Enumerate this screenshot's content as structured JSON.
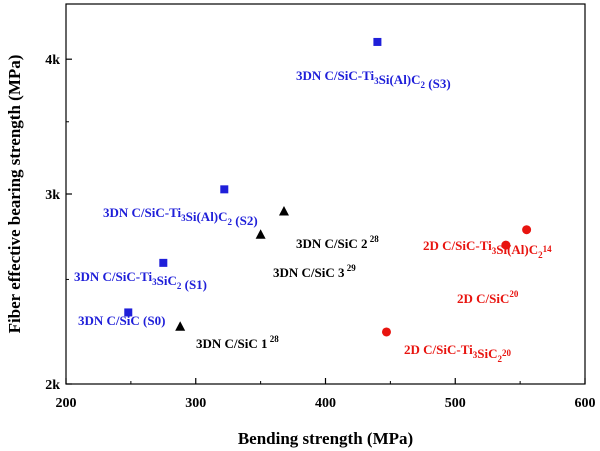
{
  "chart_data": {
    "type": "scatter",
    "xlabel": "Bending strength (MPa)",
    "ylabel": "Fiber effective bearing strength (MPa)",
    "xlim": [
      200,
      600
    ],
    "ylim": [
      2000,
      4500
    ],
    "y_scale": "log",
    "x_ticks": [
      200,
      300,
      400,
      500,
      600
    ],
    "y_ticks": [
      {
        "value": 2000,
        "label": "2k"
      },
      {
        "value": 3000,
        "label": "3k"
      },
      {
        "value": 4000,
        "label": "4k"
      }
    ],
    "grid": false,
    "points": [
      {
        "label": "3DN C/SiC (S0)",
        "label_parts": [
          [
            "3DN C/SiC (S0)",
            ""
          ]
        ],
        "x": 248,
        "y": 2330,
        "marker": "square",
        "color": "#1f1fd9"
      },
      {
        "label": "3DN C/SiC-Ti3SiC2 (S1)",
        "label_parts": [
          [
            "3DN C/SiC-Ti",
            ""
          ],
          [
            "3",
            "sub"
          ],
          [
            "SiC",
            ""
          ],
          [
            "2",
            "sub"
          ],
          [
            " (S1)",
            ""
          ]
        ],
        "x": 275,
        "y": 2590,
        "marker": "square",
        "color": "#1f1fd9"
      },
      {
        "label": "3DN C/SiC-Ti3Si(Al)C2 (S2)",
        "label_parts": [
          [
            "3DN C/SiC-Ti",
            ""
          ],
          [
            "3",
            "sub"
          ],
          [
            "Si(Al)C",
            ""
          ],
          [
            "2",
            "sub"
          ],
          [
            " (S2)",
            ""
          ]
        ],
        "x": 322,
        "y": 3030,
        "marker": "square",
        "color": "#1f1fd9"
      },
      {
        "label": "3DN C/SiC-Ti3Si(Al)C2 (S3)",
        "label_parts": [
          [
            "3DN C/SiC-Ti",
            ""
          ],
          [
            "3",
            "sub"
          ],
          [
            "Si(Al)C",
            ""
          ],
          [
            "2",
            "sub"
          ],
          [
            " (S3)",
            ""
          ]
        ],
        "x": 440,
        "y": 4150,
        "marker": "square",
        "color": "#1f1fd9"
      },
      {
        "label": "3DN C/SiC 1 28",
        "label_parts": [
          [
            "3DN C/SiC 1",
            ""
          ],
          [
            " 28",
            "sup"
          ]
        ],
        "x": 288,
        "y": 2260,
        "marker": "triangle",
        "color": "#000000"
      },
      {
        "label": "3DN C/SiC 3 29",
        "label_parts": [
          [
            "3DN C/SiC 3",
            ""
          ],
          [
            " 29",
            "sup"
          ]
        ],
        "x": 350,
        "y": 2750,
        "marker": "triangle",
        "color": "#000000"
      },
      {
        "label": "3DN C/SiC 2 28",
        "label_parts": [
          [
            "3DN C/SiC 2",
            ""
          ],
          [
            " 28",
            "sup"
          ]
        ],
        "x": 368,
        "y": 2890,
        "marker": "triangle",
        "color": "#000000"
      },
      {
        "label": "2D C/SiC-Ti3SiC2 20",
        "label_parts": [
          [
            "2D C/SiC-Ti",
            ""
          ],
          [
            "3",
            "sub"
          ],
          [
            "SiC",
            ""
          ],
          [
            "2",
            "sub"
          ],
          [
            "20",
            "sup"
          ]
        ],
        "x": 447,
        "y": 2235,
        "marker": "circle",
        "color": "#e8140f"
      },
      {
        "label": "2D C/SiC 20",
        "label_parts": [
          [
            "2D C/SiC",
            ""
          ],
          [
            "20",
            "sup"
          ]
        ],
        "x": 539,
        "y": 2690,
        "marker": "circle",
        "color": "#e8140f"
      },
      {
        "label": "2D C/SiC-Ti3Si(Al)C2 14",
        "label_parts": [
          [
            "2D C/SiC-Ti",
            ""
          ],
          [
            "3",
            "sub"
          ],
          [
            "Si(Al)C",
            ""
          ],
          [
            "2",
            "sub"
          ],
          [
            "14",
            "sup"
          ]
        ],
        "x": 555,
        "y": 2780,
        "marker": "circle",
        "color": "#e8140f"
      }
    ]
  }
}
